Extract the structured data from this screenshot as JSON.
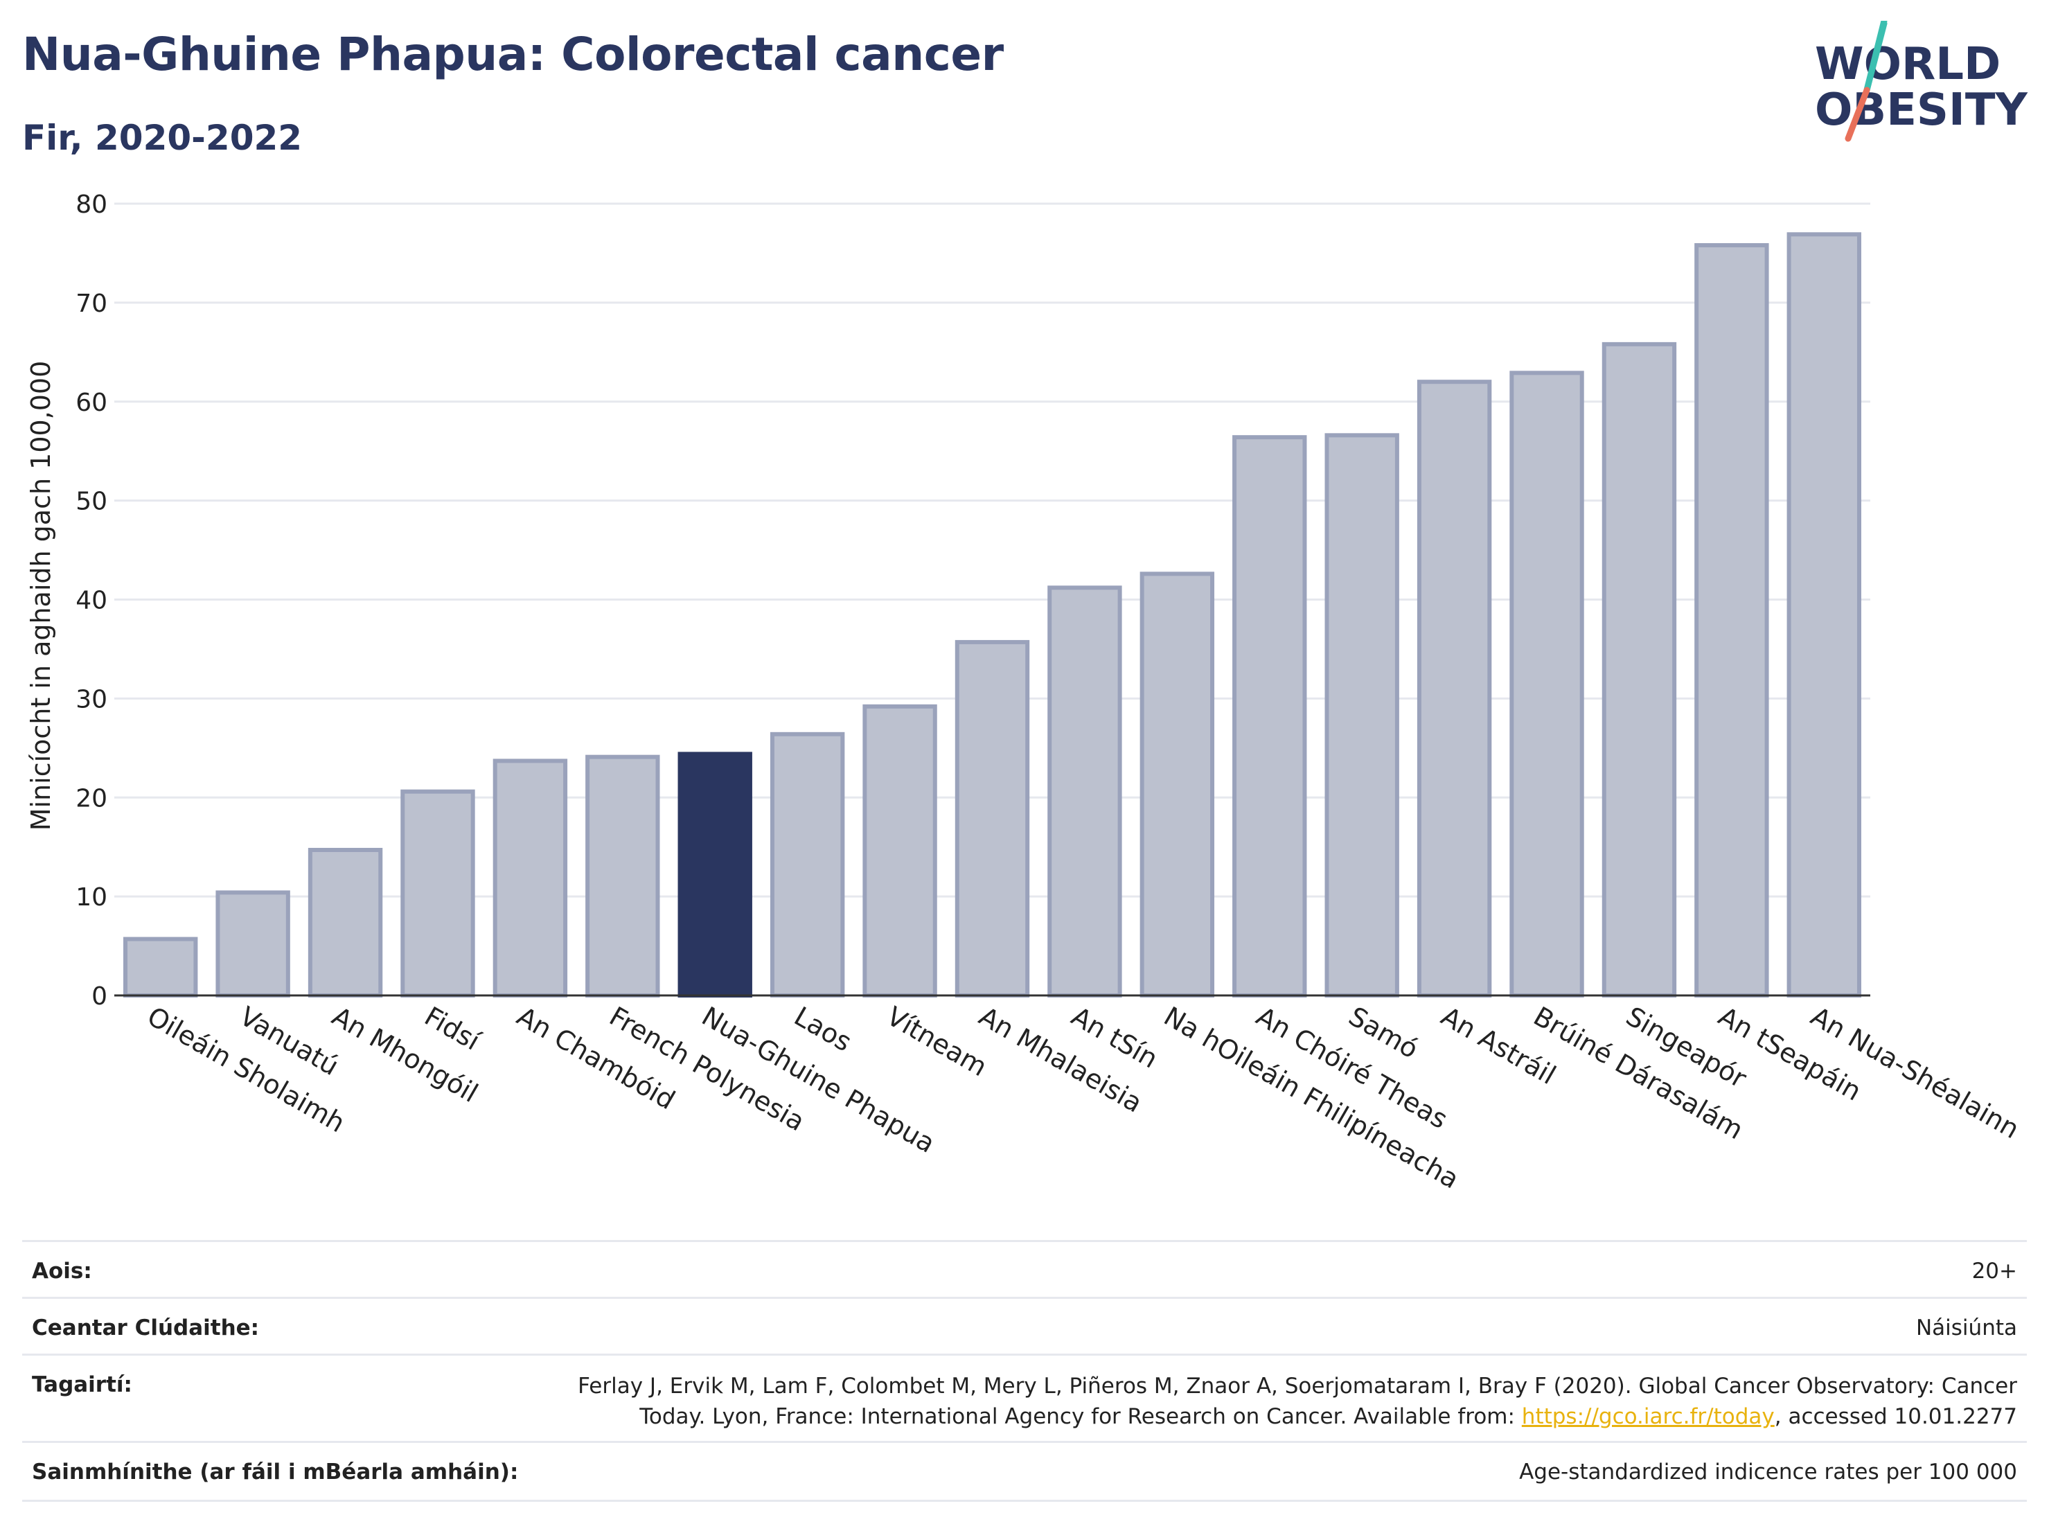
{
  "header": {
    "title": "Nua-Ghuine Phapua: Colorectal cancer",
    "subtitle": "Fir, 2020-2022"
  },
  "logo": {
    "line1": "WORLD",
    "line2": "OBESITY"
  },
  "chart_data": {
    "type": "bar",
    "ylabel": "Minicíocht in aghaidh gach 100,000",
    "xlabel": "",
    "ylim": [
      0,
      80
    ],
    "yticks": [
      0,
      10,
      20,
      30,
      40,
      50,
      60,
      70,
      80
    ],
    "grid": true,
    "highlight_color": "#2a3660",
    "bar_color": "#bcc1cf",
    "categories": [
      "Oileáin Sholaimh",
      "Vanuatú",
      "An Mhongóil",
      "Fidsí",
      "An Chambóid",
      "French Polynesia",
      "Nua-Ghuine Phapua",
      "Laos",
      "Vítneam",
      "An Mhalaeisia",
      "An tSín",
      "Na hOileáin Fhilipíneacha",
      "An Chóiré Theas",
      "Samó",
      "An Astráil",
      "Brúiné Dárasalám",
      "Singeapór",
      "An tSeapáin",
      "An Nua-Shéalainn"
    ],
    "values": [
      5.7,
      10.4,
      14.7,
      20.6,
      23.7,
      24.1,
      24.4,
      26.4,
      29.2,
      35.7,
      41.2,
      42.6,
      56.4,
      56.6,
      62.0,
      62.9,
      65.8,
      75.8,
      76.9
    ],
    "highlight_index": 6
  },
  "info": {
    "age_label": "Aois:",
    "age_value": "20+",
    "coverage_label": "Ceantar Clúdaithe:",
    "coverage_value": "Náisiúnta",
    "refs_label": "Tagairtí:",
    "refs_line1": "Ferlay J, Ervik M, Lam F, Colombet M, Mery L, Piñeros M, Znaor A, Soerjomataram I, Bray F (2020). Global Cancer Observatory: Cancer",
    "refs_line2_pre": "Today. Lyon, France: International Agency for Research on Cancer. Available from: ",
    "refs_link": "https://gco.iarc.fr/today",
    "refs_line2_post": ", accessed 10.01.2277",
    "defs_label": "Sainmhínithe (ar fáil i mBéarla amháin):",
    "defs_value": "Age-standardized indicence rates per 100 000"
  }
}
